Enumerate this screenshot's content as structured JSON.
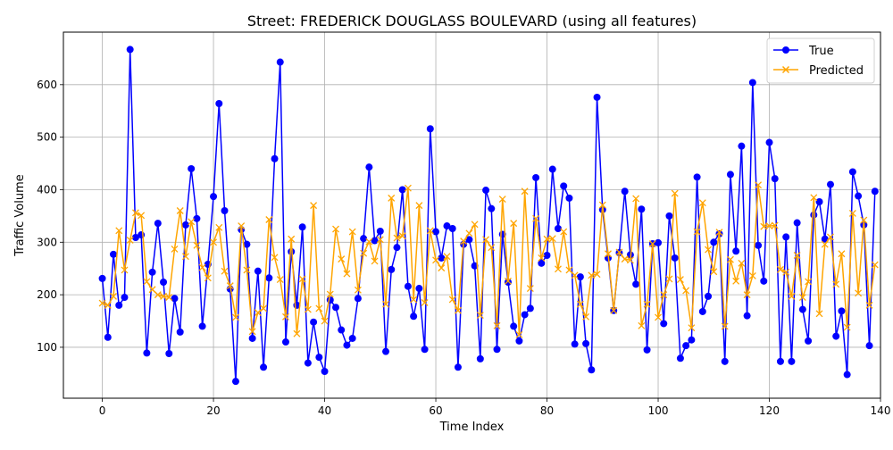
{
  "chart_data": {
    "type": "line",
    "title": "Street: FREDERICK DOUGLASS BOULEVARD (using all features)",
    "xlabel": "Time Index",
    "ylabel": "Traffic Volume",
    "xlim": [
      -7,
      140
    ],
    "ylim": [
      3,
      700
    ],
    "xticks": [
      0,
      20,
      40,
      60,
      80,
      100,
      120,
      140
    ],
    "yticks": [
      100,
      200,
      300,
      400,
      500,
      600
    ],
    "grid": true,
    "legend_position": "top-right",
    "series": [
      {
        "name": "True",
        "color": "#0000ff",
        "marker": "circle",
        "values": [
          231,
          119,
          277,
          180,
          195,
          667,
          309,
          314,
          89,
          243,
          336,
          224,
          88,
          193,
          129,
          333,
          440,
          345,
          140,
          258,
          387,
          564,
          360,
          211,
          35,
          324,
          296,
          117,
          245,
          62,
          232,
          459,
          643,
          110,
          282,
          180,
          329,
          70,
          148,
          81,
          54,
          190,
          176,
          133,
          104,
          117,
          193,
          307,
          443,
          303,
          321,
          92,
          248,
          290,
          400,
          216,
          159,
          212,
          96,
          516,
          320,
          270,
          331,
          326,
          62,
          296,
          305,
          255,
          78,
          399,
          364,
          96,
          315,
          224,
          140,
          112,
          162,
          174,
          423,
          260,
          275,
          439,
          326,
          407,
          384,
          106,
          234,
          107,
          57,
          576,
          362,
          270,
          170,
          280,
          397,
          276,
          220,
          363,
          95,
          297,
          299,
          145,
          350,
          270,
          79,
          103,
          114,
          424,
          168,
          197,
          300,
          316,
          73,
          429,
          283,
          483,
          160,
          604,
          294,
          226,
          490,
          421,
          73,
          310,
          73,
          337,
          172,
          112,
          352,
          377,
          306,
          410,
          121,
          169,
          48,
          434,
          388,
          333,
          103,
          397
        ]
      },
      {
        "name": "Predicted",
        "color": "#ffa500",
        "marker": "x",
        "values": [
          184,
          180,
          197,
          322,
          247,
          304,
          356,
          351,
          225,
          210,
          200,
          197,
          195,
          287,
          360,
          273,
          339,
          294,
          252,
          232,
          300,
          328,
          245,
          217,
          157,
          331,
          247,
          130,
          166,
          174,
          343,
          271,
          229,
          158,
          306,
          126,
          230,
          172,
          370,
          174,
          150,
          201,
          325,
          268,
          240,
          320,
          209,
          279,
          301,
          264,
          305,
          182,
          384,
          308,
          312,
          403,
          191,
          370,
          185,
          322,
          266,
          251,
          273,
          191,
          170,
          302,
          317,
          334,
          161,
          305,
          290,
          141,
          382,
          226,
          336,
          124,
          397,
          212,
          345,
          270,
          306,
          307,
          249,
          320,
          247,
          237,
          182,
          158,
          237,
          239,
          371,
          278,
          170,
          281,
          268,
          266,
          383,
          141,
          182,
          297,
          157,
          200,
          230,
          393,
          229,
          208,
          137,
          320,
          375,
          286,
          244,
          319,
          140,
          267,
          226,
          260,
          200,
          236,
          409,
          330,
          331,
          332,
          248,
          243,
          197,
          275,
          195,
          225,
          385,
          164,
          296,
          310,
          220,
          278,
          138,
          355,
          203,
          342,
          180,
          257
        ]
      }
    ]
  }
}
